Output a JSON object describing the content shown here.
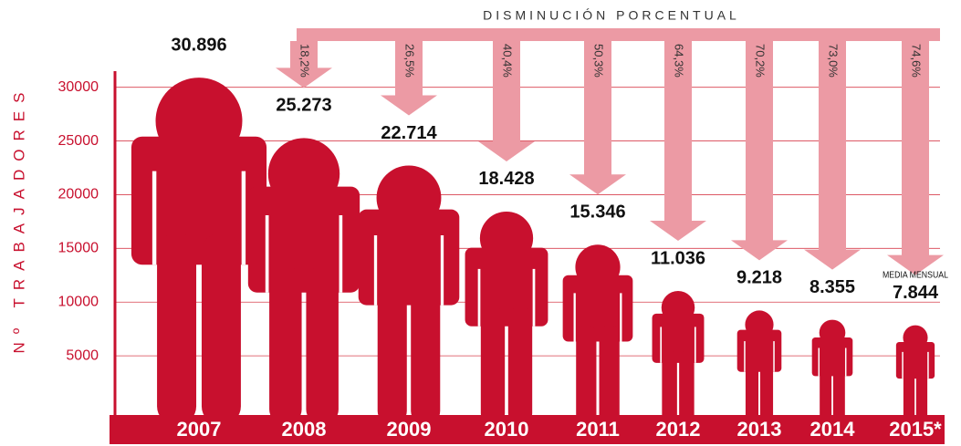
{
  "chart_data": {
    "type": "pictogram",
    "title": "DISMINUCIÓN PORCENTUAL",
    "y_label": "Nº TRABAJADORES",
    "annotation": "MEDIA MENSUAL",
    "categories": [
      "2007",
      "2008",
      "2009",
      "2010",
      "2011",
      "2012",
      "2013",
      "2014",
      "2015*"
    ],
    "values": [
      30896,
      25273,
      22714,
      18428,
      15346,
      11036,
      9218,
      8355,
      7844
    ],
    "value_labels": [
      "30.896",
      "25.273",
      "22.714",
      "18.428",
      "15.346",
      "11.036",
      "9.218",
      "8.355",
      "7.844"
    ],
    "decrease": {
      "values": [
        null,
        18.2,
        26.5,
        40.4,
        50.3,
        64.3,
        70.2,
        73.0,
        74.6
      ],
      "value_labels": [
        null,
        "18,2%",
        "26,5%",
        "40,4%",
        "50,3%",
        "64,3%",
        "70,2%",
        "73,0%",
        "74,6%"
      ],
      "color": "#ec9aa4"
    },
    "color": "#c8102e",
    "ylim": [
      0,
      31500
    ],
    "yticks": [
      5000,
      10000,
      15000,
      20000,
      25000,
      30000
    ],
    "grid": true
  }
}
